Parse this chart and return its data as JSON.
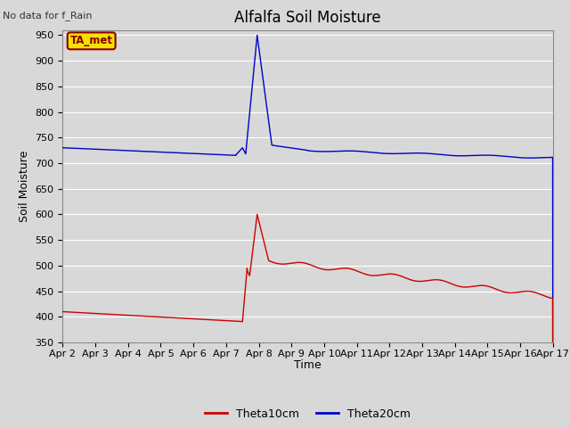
{
  "title": "Alfalfa Soil Moisture",
  "ylabel": "Soil Moisture",
  "xlabel": "Time",
  "top_left_note": "No data for f_Rain",
  "legend_box_label": "TA_met",
  "ylim": [
    350,
    960
  ],
  "yticks": [
    350,
    400,
    450,
    500,
    550,
    600,
    650,
    700,
    750,
    800,
    850,
    900,
    950
  ],
  "background_color": "#d8d8d8",
  "plot_bg_color": "#d8d8d8",
  "grid_color": "#ffffff",
  "line_red_color": "#cc0000",
  "line_blue_color": "#0000cc",
  "x_tick_labels": [
    "Apr 2",
    "Apr 3",
    "Apr 4",
    "Apr 5",
    "Apr 6",
    "Apr 7",
    "Apr 8",
    "Apr 9",
    "Apr 10",
    "Apr 11",
    "Apr 12",
    "Apr 13",
    "Apr 14",
    "Apr 15",
    "Apr 16",
    "Apr 17"
  ],
  "legend_labels": [
    "Theta10cm",
    "Theta20cm"
  ],
  "figsize": [
    6.4,
    4.8
  ],
  "dpi": 100
}
